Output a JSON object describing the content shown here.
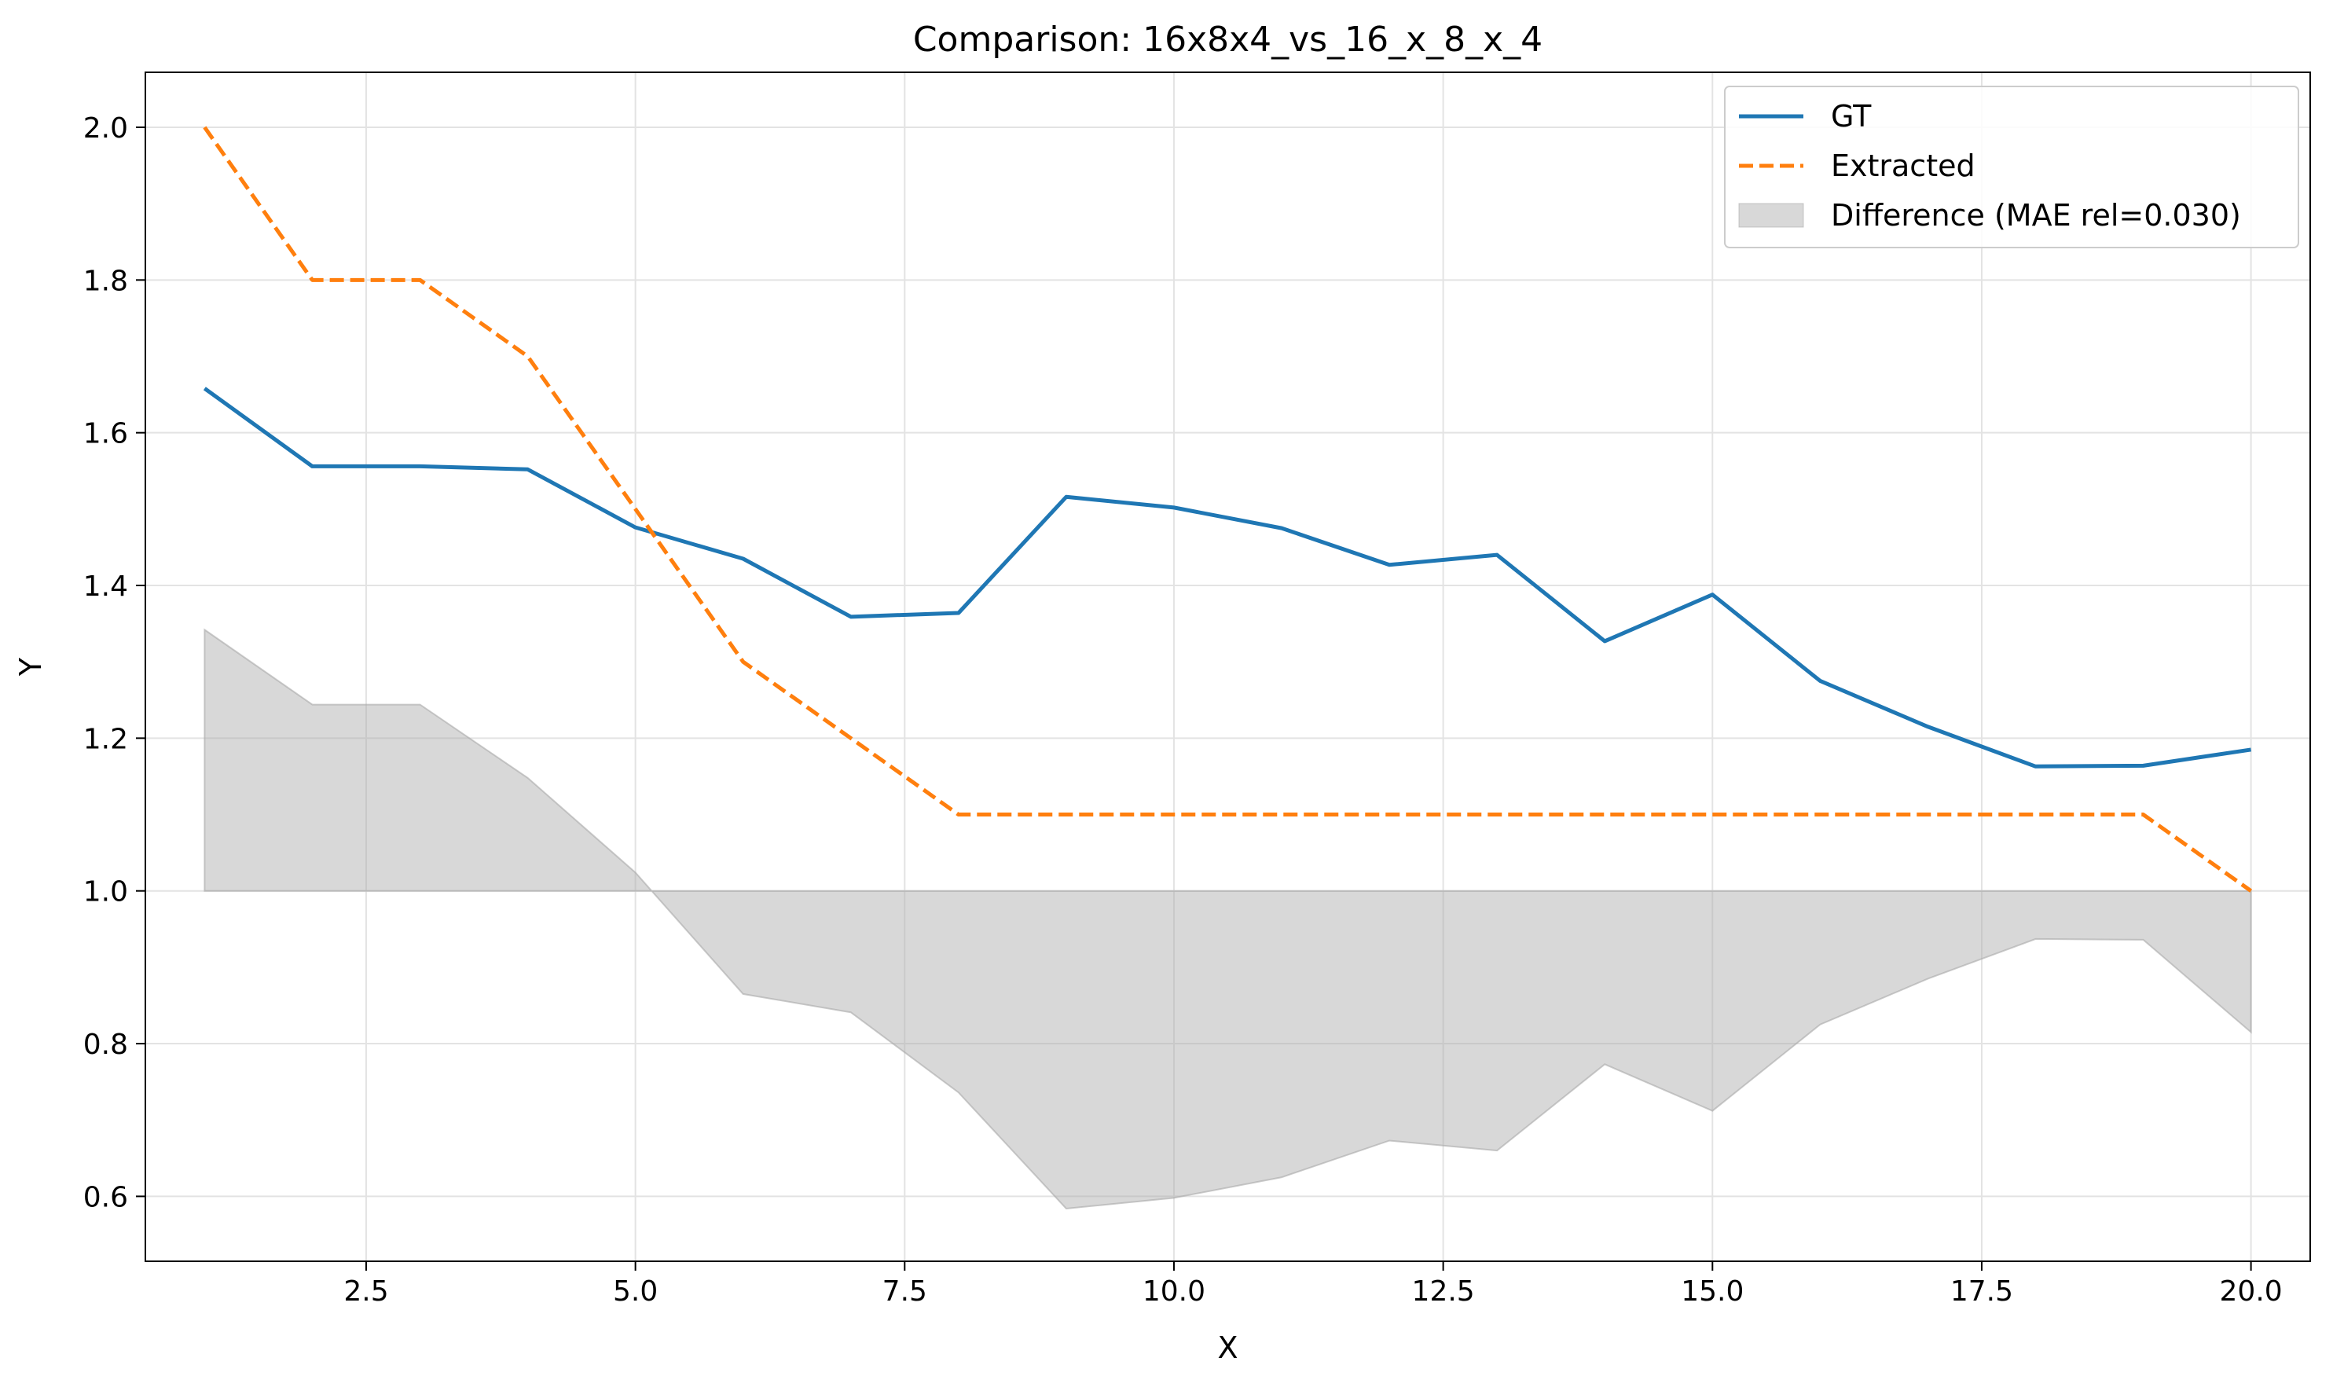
{
  "chart_data": {
    "type": "line",
    "title": "Comparison: 16x8x4_vs_16_x_8_x_4",
    "xlabel": "X",
    "ylabel": "Y",
    "xlim": [
      0.45,
      20.55
    ],
    "ylim": [
      0.515,
      2.072
    ],
    "xticks": [
      2.5,
      5.0,
      7.5,
      10.0,
      12.5,
      15.0,
      17.5,
      20.0
    ],
    "yticks": [
      0.6,
      0.8,
      1.0,
      1.2,
      1.4,
      1.6,
      1.8,
      2.0
    ],
    "grid": true,
    "legend_position": "top-right",
    "x": [
      1,
      2,
      3,
      4,
      5,
      6,
      7,
      8,
      9,
      10,
      11,
      12,
      13,
      14,
      15,
      16,
      17,
      18,
      19,
      20
    ],
    "series": [
      {
        "name": "GT",
        "style": "solid",
        "color": "#1f77b4",
        "values": [
          1.658,
          1.556,
          1.556,
          1.552,
          1.476,
          1.435,
          1.359,
          1.364,
          1.516,
          1.502,
          1.475,
          1.427,
          1.44,
          1.327,
          1.388,
          1.275,
          1.215,
          1.163,
          1.164,
          1.185
        ]
      },
      {
        "name": "Extracted",
        "style": "dashed",
        "color": "#ff7f0e",
        "values": [
          2.0,
          1.8,
          1.8,
          1.7,
          1.5,
          1.3,
          1.2,
          1.1,
          1.1,
          1.1,
          1.1,
          1.1,
          1.1,
          1.1,
          1.1,
          1.1,
          1.1,
          1.1,
          1.1,
          1.0
        ]
      }
    ],
    "fill": {
      "name": "Difference (MAE rel=0.030)",
      "color": "#a9a9a9",
      "baseline": 1.0,
      "values": [
        1.342,
        1.244,
        1.244,
        1.148,
        1.024,
        0.865,
        0.841,
        0.736,
        0.584,
        0.598,
        0.625,
        0.673,
        0.66,
        0.773,
        0.712,
        0.825,
        0.885,
        0.937,
        0.936,
        0.815
      ]
    }
  }
}
